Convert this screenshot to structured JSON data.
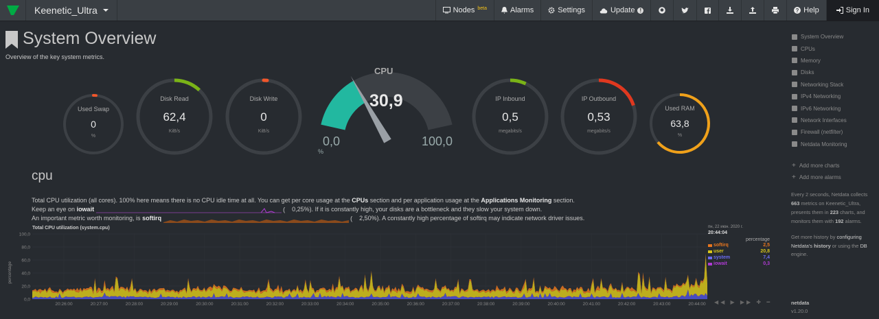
{
  "navbar": {
    "host": "Keenetic_Ultra",
    "nodes": "Nodes",
    "nodes_badge": "beta",
    "alarms": "Alarms",
    "settings": "Settings",
    "update": "Update",
    "update_badge": "!",
    "help": "Help",
    "signin": "Sign In"
  },
  "page": {
    "title": "System Overview",
    "subtitle": "Overview of the key system metrics."
  },
  "gauges": {
    "used_swap": {
      "title": "Used Swap",
      "value": "0",
      "unit": "%",
      "fraction": 0.0,
      "color": "#f0562b"
    },
    "disk_read": {
      "title": "Disk Read",
      "value": "62,4",
      "unit": "KiB/s",
      "fraction": 0.12,
      "color": "#7ab317"
    },
    "disk_write": {
      "title": "Disk Write",
      "value": "0",
      "unit": "KiB/s",
      "fraction": 0.0,
      "color": "#f0562b"
    },
    "cpu": {
      "title": "CPU",
      "value": "30,9",
      "min": "0,0",
      "max": "100,0",
      "unit": "%",
      "fraction": 0.309,
      "color": "#22b8a0"
    },
    "ip_inbound": {
      "title": "IP Inbound",
      "value": "0,5",
      "unit": "megabits/s",
      "fraction": 0.07,
      "color": "#7ab317"
    },
    "ip_outbound": {
      "title": "IP Outbound",
      "value": "0,53",
      "unit": "megabits/s",
      "fraction": 0.2,
      "color": "#e0381f"
    },
    "used_ram": {
      "title": "Used RAM",
      "value": "63,8",
      "unit": "%",
      "fraction": 0.638,
      "color": "#f0a11a"
    }
  },
  "section": {
    "title": "cpu",
    "line1_a": "Total CPU utilization (all cores). 100% here means there is no CPU idle time at all. You can get per core usage at the ",
    "line1_cpus": "CPUs",
    "line1_b": " section and per application usage at the ",
    "line1_apps": "Applications Monitoring",
    "line1_c": " section.",
    "line2_a": "Keep an eye on ",
    "line2_key": "iowait",
    "line2_val": "0,25%",
    "line2_b": "). If it is constantly high, your disks are a bottleneck and they slow your system down.",
    "line3_a": "An important metric worth monitoring, is ",
    "line3_key": "softirq",
    "line3_val": "2,50%",
    "line3_b": "). A constantly high percentage of softirq may indicate network driver issues."
  },
  "chart_data": {
    "type": "area",
    "title": "Total CPU utilization (system.cpu)",
    "xlabel": "",
    "ylabel": "percentage",
    "ylim": [
      0,
      100
    ],
    "yticks": [
      "100,0",
      "80,0",
      "60,0",
      "40,0",
      "20,0",
      "0,0"
    ],
    "x": [
      "20:26:00",
      "20:27:00",
      "20:28:00",
      "20:29:00",
      "20:30:00",
      "20:31:00",
      "20:32:00",
      "20:33:00",
      "20:34:00",
      "20:35:00",
      "20:36:00",
      "20:37:00",
      "20:38:00",
      "20:39:00",
      "20:40:00",
      "20:41:00",
      "20:42:00",
      "20:43:00",
      "20:44:00"
    ],
    "stacked": true,
    "series": [
      {
        "name": "softirq",
        "color": "#e8761e",
        "values": [
          2.5,
          2.4,
          2.6,
          2.5,
          2.4,
          2.5,
          2.6,
          2.5,
          2.4,
          2.5,
          2.6,
          2.5,
          2.4,
          2.5,
          2.6,
          2.5,
          2.4,
          2.5,
          2.5
        ]
      },
      {
        "name": "user",
        "color": "#d8c51a",
        "values": [
          9,
          8,
          10,
          9,
          9,
          11,
          9,
          8,
          10,
          12,
          9,
          10,
          8,
          9,
          10,
          9,
          11,
          10,
          20.8
        ]
      },
      {
        "name": "system",
        "color": "#4f52d9",
        "values": [
          3,
          3,
          3.5,
          3,
          3,
          3.2,
          3,
          3,
          3.4,
          3,
          3,
          3.3,
          3,
          3,
          3.2,
          3,
          3.4,
          3,
          7.4
        ]
      },
      {
        "name": "iowait",
        "color": "#b03bd4",
        "values": [
          0.2,
          0.2,
          0.3,
          0.2,
          0.2,
          0.3,
          0.2,
          0.2,
          0.3,
          0.2,
          0.2,
          0.3,
          0.2,
          0.2,
          0.3,
          0.2,
          0.2,
          0.3,
          0.3
        ]
      }
    ],
    "grid": true
  },
  "legend": {
    "date": "пн, 22 июн. 2020 г.",
    "time": "20:44:04",
    "unit": "percentage",
    "rows": [
      {
        "name": "softirq",
        "value": "2,5",
        "color": "#e8761e"
      },
      {
        "name": "user",
        "value": "20,8",
        "color": "#d8c51a"
      },
      {
        "name": "system",
        "value": "7,4",
        "color": "#6a6cf0"
      },
      {
        "name": "iowait",
        "value": "0,3",
        "color": "#b03bd4"
      }
    ]
  },
  "sidebar": {
    "items": [
      "System Overview",
      "CPUs",
      "Memory",
      "Disks",
      "Networking Stack",
      "IPv4 Networking",
      "IPv6 Networking",
      "Network Interfaces",
      "Firewall (netfilter)",
      "Netdata Monitoring"
    ],
    "add_charts": "Add more charts",
    "add_alarms": "Add more alarms",
    "info_1": "Every 2 seconds, Netdata collects ",
    "info_metrics": "663",
    "info_2": " metrics on Keenetic_Ultra, presents them in ",
    "info_charts": "223",
    "info_3": " charts, and monitors them with ",
    "info_alarms": "192",
    "info_4": " alarms.",
    "history_1": "Get more history by ",
    "history_link": "configuring Netdata's",
    "history_b": "history",
    "history_2": " or using the ",
    "history_db": "DB",
    "history_3": " engine.",
    "brand": "netdata",
    "version": "v1.20.0"
  }
}
